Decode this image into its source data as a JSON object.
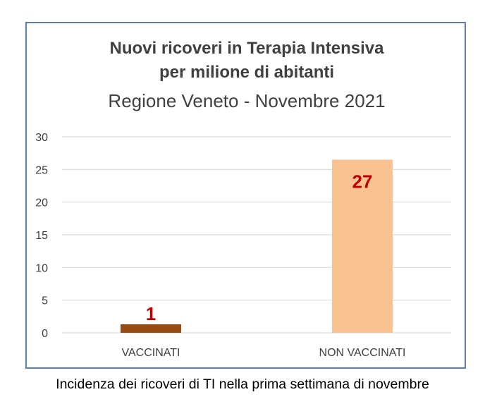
{
  "chart_data": {
    "type": "bar",
    "title": "Nuovi ricoveri in Terapia Intensiva",
    "title_line2": "per milione di abitanti",
    "subtitle": "Regione Veneto - Novembre 2021",
    "categories": [
      "VACCINATI",
      "NON VACCINATI"
    ],
    "values": [
      1.3,
      26.5
    ],
    "data_labels": [
      "1",
      "27"
    ],
    "colors": [
      "#974a12",
      "#f8c291"
    ],
    "label_color": "#c00000",
    "ylim": [
      0,
      30
    ],
    "yticks": [
      0,
      5,
      10,
      15,
      20,
      25,
      30
    ],
    "grid": true,
    "xlabel": "",
    "ylabel": ""
  },
  "caption": "Incidenza dei ricoveri di TI nella prima settimana di novembre"
}
